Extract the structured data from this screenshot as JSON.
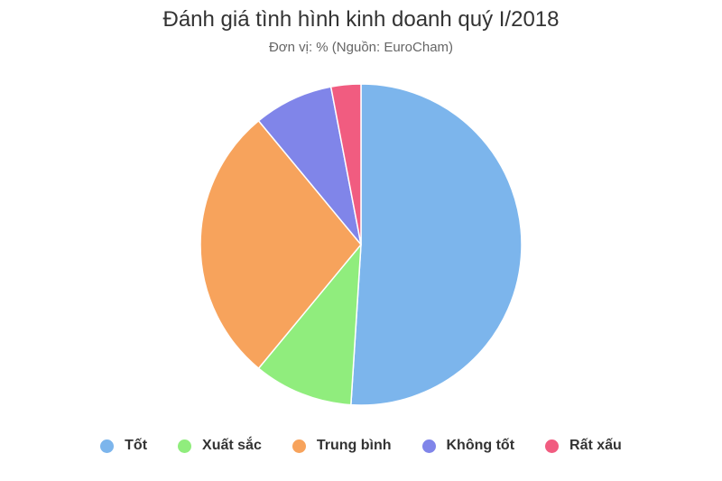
{
  "chart_data": {
    "type": "pie",
    "title": "Đánh giá tình hình kinh doanh quý I/2018",
    "subtitle": "Đơn vị: % (Nguồn: EuroCham)",
    "legend_position": "bottom",
    "slices": [
      {
        "label": "Tốt",
        "value": 51,
        "color": "#7cb5ec"
      },
      {
        "label": "Xuất sắc",
        "value": 10,
        "color": "#90ed7d"
      },
      {
        "label": "Trung bình",
        "value": 28,
        "color": "#f7a35c"
      },
      {
        "label": "Không tốt",
        "value": 8,
        "color": "#8085e9"
      },
      {
        "label": "Rất xấu",
        "value": 3,
        "color": "#f15c80"
      }
    ]
  }
}
